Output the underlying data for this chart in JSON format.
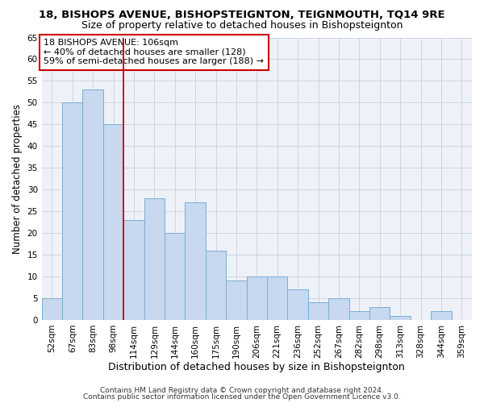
{
  "title": "18, BISHOPS AVENUE, BISHOPSTEIGNTON, TEIGNMOUTH, TQ14 9RE",
  "subtitle": "Size of property relative to detached houses in Bishopsteignton",
  "xlabel": "Distribution of detached houses by size in Bishopsteignton",
  "ylabel": "Number of detached properties",
  "bar_labels": [
    "52sqm",
    "67sqm",
    "83sqm",
    "98sqm",
    "114sqm",
    "129sqm",
    "144sqm",
    "160sqm",
    "175sqm",
    "190sqm",
    "206sqm",
    "221sqm",
    "236sqm",
    "252sqm",
    "267sqm",
    "282sqm",
    "298sqm",
    "313sqm",
    "328sqm",
    "344sqm",
    "359sqm"
  ],
  "bar_values": [
    5,
    50,
    53,
    45,
    23,
    28,
    20,
    27,
    16,
    9,
    10,
    10,
    7,
    4,
    5,
    2,
    3,
    1,
    0,
    2,
    0
  ],
  "ylim": [
    0,
    65
  ],
  "yticks": [
    0,
    5,
    10,
    15,
    20,
    25,
    30,
    35,
    40,
    45,
    50,
    55,
    60,
    65
  ],
  "bar_color": "#c8d8ee",
  "bar_edge_color": "#7aadd4",
  "vline_x_index": 3,
  "vline_color": "#cc0000",
  "annotation_title": "18 BISHOPS AVENUE: 106sqm",
  "annotation_line1": "← 40% of detached houses are smaller (128)",
  "annotation_line2": "59% of semi-detached houses are larger (188) →",
  "annotation_box_facecolor": "#ffffff",
  "annotation_box_edgecolor": "#cc0000",
  "bg_color": "#ffffff",
  "plot_bg_color": "#eef2f8",
  "grid_color": "#c8d0dc",
  "footer1": "Contains HM Land Registry data © Crown copyright and database right 2024.",
  "footer2": "Contains public sector information licensed under the Open Government Licence v3.0.",
  "title_fontsize": 9.5,
  "subtitle_fontsize": 9,
  "xlabel_fontsize": 9,
  "ylabel_fontsize": 8.5,
  "tick_fontsize": 7.5,
  "annotation_fontsize": 8,
  "footer_fontsize": 6.5
}
